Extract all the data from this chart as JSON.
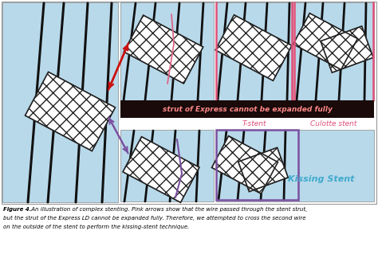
{
  "fig_bg": "#ffffff",
  "outer_bg": "#ffffff",
  "panel_bg": "#b8d9ea",
  "pink_border": "#e0507a",
  "purple_border": "#7a50a0",
  "red_banner_bg": "#1a0a0a",
  "banner_text": "strut of Express cannot be expanded fully",
  "banner_text_color": "#ff8888",
  "label_tstent": "T-stent",
  "label_culotte": "Culotte stent",
  "label_kissing": "Kissing Stent",
  "label_color_pink": "#e0507a",
  "label_color_kissing": "#40aacc",
  "caption_bold": "Figure 4.",
  "caption_rest": " An illustration of complex stenting. Pink arrows show that the wire passed through the stent strut, but the strut of the Express LD cannot be expanded fully. Therefore, we attempted to cross the second wire on the outside of the stent to perform the kissing-stent technique.",
  "vessel_color": "#111111",
  "stent_color": "#222222",
  "red_arrow_color": "#cc1111",
  "purple_arrow_color": "#7a50a0",
  "pink_wire_color": "#dd6688",
  "purple_wire_color": "#7a50a0"
}
